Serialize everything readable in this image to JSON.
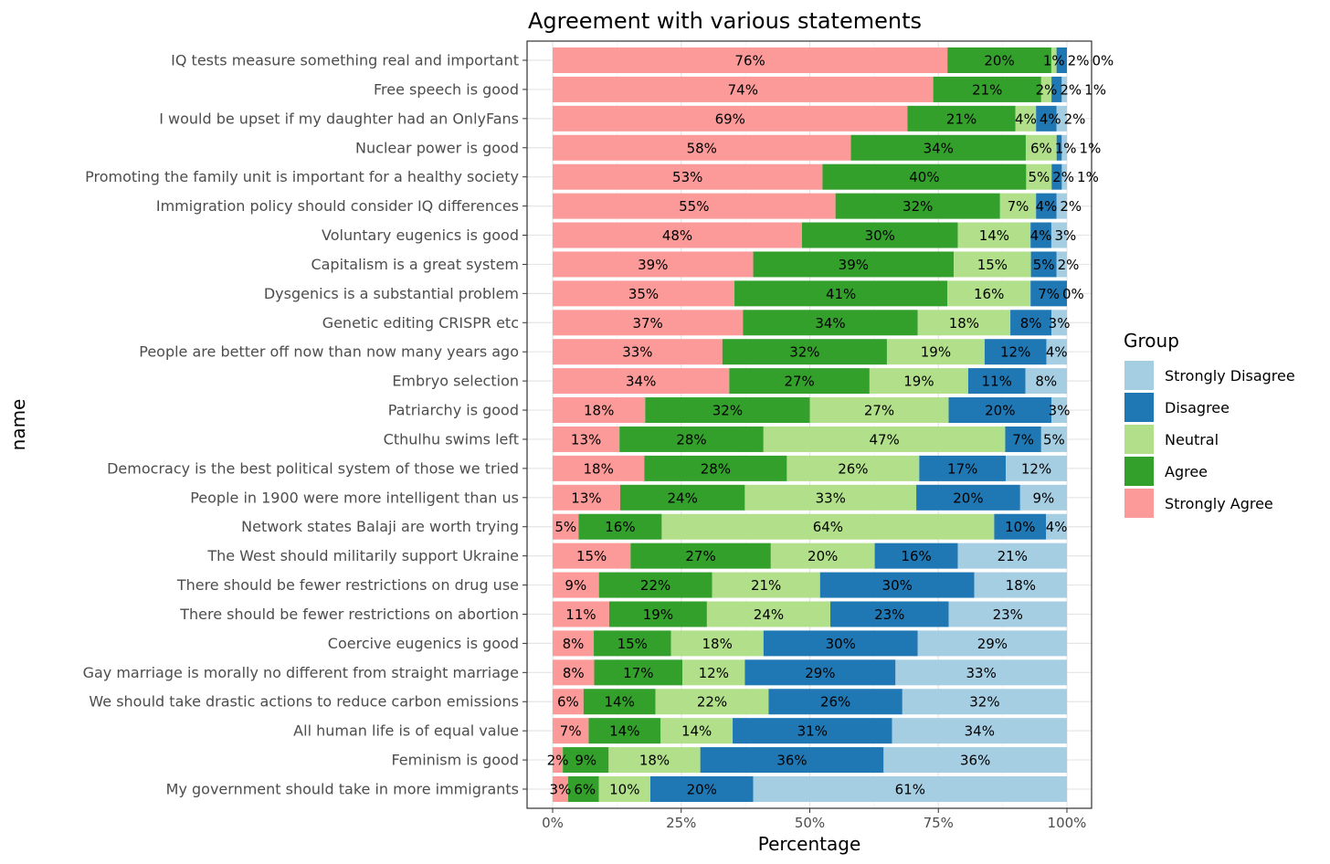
{
  "chart_data": {
    "type": "bar",
    "orientation": "horizontal",
    "stacked": "percent",
    "title": "Agreement with various statements",
    "xlabel": "Percentage",
    "ylabel": "name",
    "xlim": [
      0,
      100
    ],
    "xticks": [
      "0%",
      "25%",
      "50%",
      "75%",
      "100%"
    ],
    "grid": true,
    "legend": {
      "title": "Group",
      "placement": "right",
      "entries": [
        "Strongly Disagree",
        "Disagree",
        "Neutral",
        "Agree",
        "Strongly Agree"
      ]
    },
    "colors": {
      "Strongly Agree": "#fb9a99",
      "Agree": "#33a02c",
      "Neutral": "#b2df8a",
      "Disagree": "#1f78b4",
      "Strongly Disagree": "#a6cee3"
    },
    "stack_order": [
      "Strongly Agree",
      "Agree",
      "Neutral",
      "Disagree",
      "Strongly Disagree"
    ],
    "categories": [
      "IQ tests measure something real and important",
      "Free speech is good",
      "I would be upset if my daughter had an OnlyFans",
      "Nuclear power is good",
      "Promoting the family unit is important for a healthy society",
      "Immigration policy should consider IQ differences",
      "Voluntary eugenics is good",
      "Capitalism is a great system",
      "Dysgenics is a substantial problem",
      "Genetic editing CRISPR etc",
      "People are better off now than now many years ago",
      "Embryo selection",
      "Patriarchy is good",
      "Cthulhu swims left",
      "Democracy is the best political system of those we tried",
      "People in 1900 were more intelligent than us",
      "Network states Balaji are worth trying",
      "The West should militarily support Ukraine",
      "There should be fewer restrictions on drug use",
      "There should be fewer restrictions on abortion",
      "Coercive eugenics is good",
      "Gay marriage is morally no different from straight marriage",
      "We should take drastic actions to reduce carbon emissions",
      "All human life is of equal value",
      "Feminism is good",
      "My government should take in more immigrants"
    ],
    "series": [
      {
        "name": "Strongly Agree",
        "values": [
          76,
          74,
          69,
          58,
          53,
          55,
          48,
          39,
          35,
          37,
          33,
          34,
          18,
          13,
          18,
          13,
          5,
          15,
          9,
          11,
          8,
          8,
          6,
          7,
          2,
          3
        ]
      },
      {
        "name": "Agree",
        "values": [
          20,
          21,
          21,
          34,
          40,
          32,
          30,
          39,
          41,
          34,
          32,
          27,
          32,
          28,
          28,
          24,
          16,
          27,
          22,
          19,
          15,
          17,
          14,
          14,
          9,
          6
        ]
      },
      {
        "name": "Neutral",
        "values": [
          1,
          2,
          4,
          6,
          5,
          7,
          14,
          15,
          16,
          18,
          19,
          19,
          27,
          47,
          26,
          33,
          64,
          20,
          21,
          24,
          18,
          12,
          22,
          14,
          18,
          10
        ]
      },
      {
        "name": "Disagree",
        "values": [
          2,
          2,
          4,
          1,
          2,
          4,
          4,
          5,
          7,
          8,
          12,
          11,
          20,
          7,
          17,
          20,
          10,
          16,
          30,
          23,
          30,
          29,
          26,
          31,
          36,
          20
        ]
      },
      {
        "name": "Strongly Disagree",
        "values": [
          0,
          1,
          2,
          1,
          1,
          2,
          3,
          2,
          0,
          3,
          4,
          8,
          3,
          5,
          12,
          9,
          4,
          21,
          18,
          23,
          29,
          33,
          32,
          34,
          36,
          61
        ]
      }
    ]
  }
}
